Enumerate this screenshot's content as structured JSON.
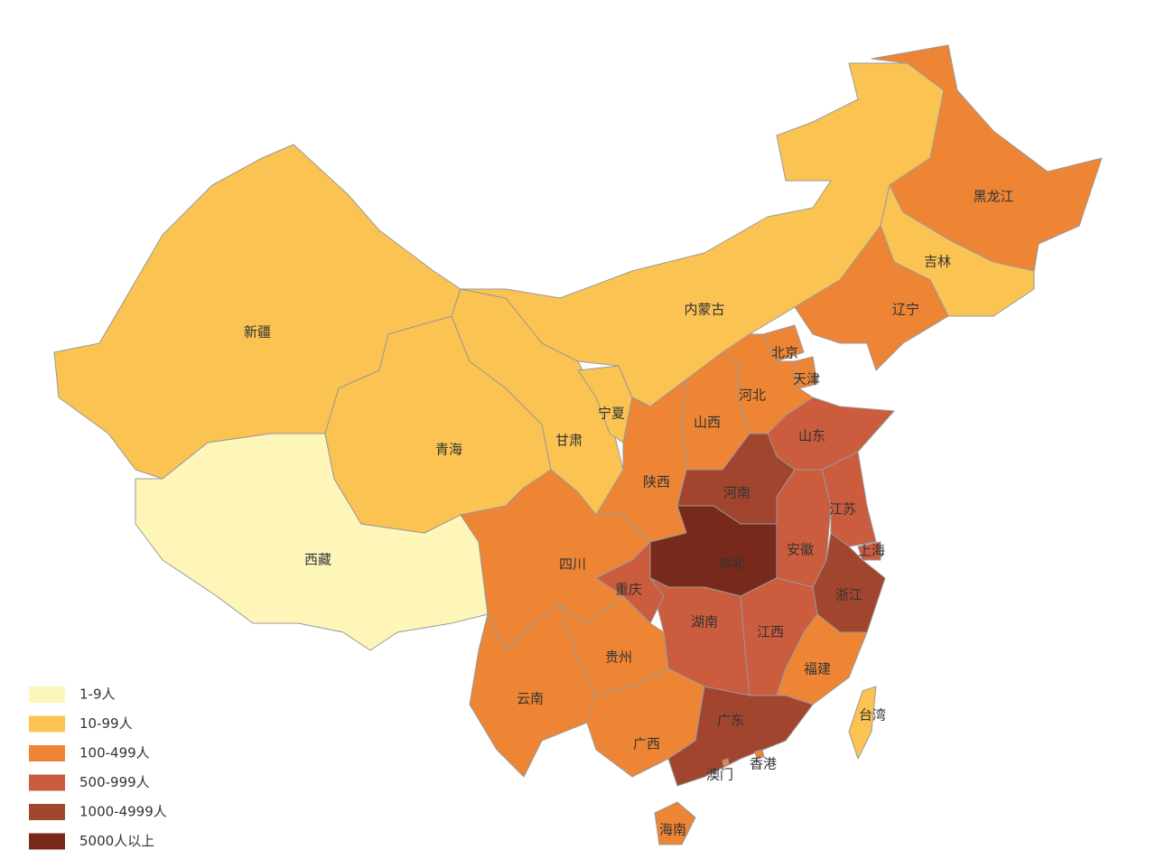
{
  "legend": [
    {
      "label": "1-9人",
      "color": "#fef5b9"
    },
    {
      "label": "10-99人",
      "color": "#fbc352"
    },
    {
      "label": "100-499人",
      "color": "#ee8535"
    },
    {
      "label": "500-999人",
      "color": "#cb5c3e"
    },
    {
      "label": "1000-4999人",
      "color": "#a2452f"
    },
    {
      "label": "5000人以上",
      "color": "#78291b"
    }
  ],
  "regions": [
    {
      "name": "新疆",
      "level": 1
    },
    {
      "name": "西藏",
      "level": 0
    },
    {
      "name": "青海",
      "level": 1
    },
    {
      "name": "甘肃",
      "level": 1
    },
    {
      "name": "宁夏",
      "level": 1
    },
    {
      "name": "内蒙古",
      "level": 1
    },
    {
      "name": "黑龙江",
      "level": 2
    },
    {
      "name": "吉林",
      "level": 1
    },
    {
      "name": "辽宁",
      "level": 2
    },
    {
      "name": "北京",
      "level": 2
    },
    {
      "name": "天津",
      "level": 2
    },
    {
      "name": "河北",
      "level": 2
    },
    {
      "name": "山西",
      "level": 2
    },
    {
      "name": "陕西",
      "level": 2
    },
    {
      "name": "山东",
      "level": 3
    },
    {
      "name": "河南",
      "level": 4
    },
    {
      "name": "湖北",
      "level": 5
    },
    {
      "name": "安徽",
      "level": 3
    },
    {
      "name": "江苏",
      "level": 3
    },
    {
      "name": "上海",
      "level": 3
    },
    {
      "name": "浙江",
      "level": 4
    },
    {
      "name": "江西",
      "level": 3
    },
    {
      "name": "湖南",
      "level": 3
    },
    {
      "name": "福建",
      "level": 2
    },
    {
      "name": "重庆",
      "level": 3
    },
    {
      "name": "四川",
      "level": 2
    },
    {
      "name": "贵州",
      "level": 2
    },
    {
      "name": "云南",
      "level": 2
    },
    {
      "name": "广西",
      "level": 2
    },
    {
      "name": "广东",
      "level": 4
    },
    {
      "name": "海南",
      "level": 2
    },
    {
      "name": "台湾",
      "level": 1
    },
    {
      "name": "香港",
      "level": 2
    },
    {
      "name": "澳门",
      "level": 2
    }
  ]
}
